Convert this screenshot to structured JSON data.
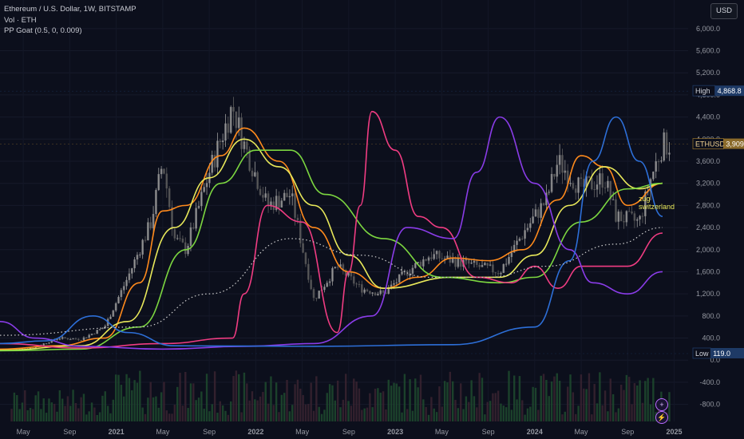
{
  "legend": {
    "symbol_line": "Ethereum / U.S. Dollar, 1W, BITSTAMP",
    "volume_line": "Vol · ETH",
    "indicator_line": "PP Goat (0.5, 0, 0.009)"
  },
  "currency_button": "USD",
  "side_buttons": {
    "plus": "+",
    "bolt": "⚡"
  },
  "annotation": {
    "line1": "zug",
    "line2": "switzerland"
  },
  "badges": {
    "high": {
      "label": "High",
      "value": "4,868.8",
      "price": 4868.8
    },
    "last": {
      "label": "ETHUSD",
      "value": "3,909.9",
      "price": 3909.9
    },
    "low": {
      "label": "Low",
      "value": "119.0",
      "price": 119.0
    }
  },
  "colors": {
    "background": "#0c0f1c",
    "orange": "#ff8a1c",
    "yellow": "#e8e85a",
    "green": "#7cd640",
    "pink": "#f03c82",
    "purple": "#8a3ce8",
    "blue": "#2d6fd8",
    "candle": "#8a8a8a",
    "volume": "#1f4a2e",
    "white_dots": "#cfcfcf"
  },
  "chart_data": {
    "type": "line",
    "title": "Ethereum / U.S. Dollar, 1W, BITSTAMP",
    "x_ticks": [
      "May",
      "Sep",
      "2021",
      "May",
      "Sep",
      "2022",
      "May",
      "Sep",
      "2023",
      "May",
      "Sep",
      "2024",
      "May",
      "Sep",
      "2025"
    ],
    "y_ticks": [
      6000,
      5600,
      5200,
      4800,
      4400,
      4000,
      3600,
      3200,
      2800,
      2400,
      2000,
      1600,
      1200,
      800,
      400,
      0,
      -400,
      -800
    ],
    "y_tick_labels": [
      "6,000.0",
      "5,600.0",
      "5,200.0",
      "4,800.0",
      "4,400.0",
      "4,000.0",
      "3,600.0",
      "3,200.0",
      "2,800.0",
      "2,400.0",
      "2,000.0",
      "1,600.0",
      "1,200.0",
      "800.0",
      "400.0",
      "0.0",
      "-400.0",
      "-800.0"
    ],
    "ylim": [
      -950,
      6200
    ],
    "x_start": "2020-03",
    "x_end": "2024-12",
    "price_candles_approx": [
      [
        "2020-04",
        180
      ],
      [
        "2020-06",
        235
      ],
      [
        "2020-08",
        400
      ],
      [
        "2020-10",
        380
      ],
      [
        "2020-12",
        600
      ],
      [
        "2021-02",
        1500
      ],
      [
        "2021-04",
        2500
      ],
      [
        "2021-05",
        3600
      ],
      [
        "2021-06",
        2200
      ],
      [
        "2021-07",
        2000
      ],
      [
        "2021-09",
        3400
      ],
      [
        "2021-11",
        4600
      ],
      [
        "2021-12",
        3900
      ],
      [
        "2022-02",
        2800
      ],
      [
        "2022-04",
        3000
      ],
      [
        "2022-06",
        1100
      ],
      [
        "2022-08",
        1700
      ],
      [
        "2022-10",
        1300
      ],
      [
        "2022-12",
        1200
      ],
      [
        "2023-02",
        1600
      ],
      [
        "2023-04",
        1900
      ],
      [
        "2023-06",
        1800
      ],
      [
        "2023-08",
        1700
      ],
      [
        "2023-10",
        1600
      ],
      [
        "2023-12",
        2300
      ],
      [
        "2024-02",
        2900
      ],
      [
        "2024-03",
        3600
      ],
      [
        "2024-05",
        3100
      ],
      [
        "2024-07",
        3300
      ],
      [
        "2024-08",
        2600
      ],
      [
        "2024-10",
        2500
      ],
      [
        "2024-11",
        3300
      ],
      [
        "2024-12",
        3900
      ]
    ],
    "series": [
      {
        "color": "#ff8a1c",
        "points": [
          [
            "2020-03",
            200
          ],
          [
            "2020-08",
            260
          ],
          [
            "2020-12",
            400
          ],
          [
            "2021-03",
            1400
          ],
          [
            "2021-05",
            2700
          ],
          [
            "2021-07",
            2800
          ],
          [
            "2021-10",
            3700
          ],
          [
            "2021-12",
            4200
          ],
          [
            "2022-03",
            3600
          ],
          [
            "2022-06",
            2400
          ],
          [
            "2022-09",
            1600
          ],
          [
            "2022-12",
            1300
          ],
          [
            "2023-03",
            1500
          ],
          [
            "2023-06",
            1850
          ],
          [
            "2023-09",
            1800
          ],
          [
            "2023-12",
            2000
          ],
          [
            "2024-03",
            2900
          ],
          [
            "2024-05",
            3700
          ],
          [
            "2024-07",
            3500
          ],
          [
            "2024-09",
            2800
          ],
          [
            "2024-12",
            3200
          ]
        ]
      },
      {
        "color": "#e8e85a",
        "points": [
          [
            "2020-03",
            180
          ],
          [
            "2020-10",
            260
          ],
          [
            "2021-02",
            700
          ],
          [
            "2021-06",
            2400
          ],
          [
            "2021-09",
            3300
          ],
          [
            "2021-12",
            4000
          ],
          [
            "2022-03",
            3500
          ],
          [
            "2022-06",
            2800
          ],
          [
            "2022-09",
            1900
          ],
          [
            "2022-12",
            1300
          ],
          [
            "2023-06",
            1500
          ],
          [
            "2023-10",
            1500
          ],
          [
            "2024-01",
            1900
          ],
          [
            "2024-04",
            2800
          ],
          [
            "2024-07",
            3500
          ],
          [
            "2024-10",
            3100
          ],
          [
            "2024-12",
            3200
          ]
        ]
      },
      {
        "color": "#7cd640",
        "points": [
          [
            "2020-03",
            170
          ],
          [
            "2020-10",
            200
          ],
          [
            "2021-03",
            600
          ],
          [
            "2021-07",
            2000
          ],
          [
            "2021-10",
            3200
          ],
          [
            "2022-01",
            3800
          ],
          [
            "2022-04",
            3800
          ],
          [
            "2022-07",
            3000
          ],
          [
            "2022-12",
            2200
          ],
          [
            "2023-05",
            1500
          ],
          [
            "2023-10",
            1400
          ],
          [
            "2024-01",
            1500
          ],
          [
            "2024-05",
            2500
          ],
          [
            "2024-09",
            3100
          ],
          [
            "2024-12",
            3200
          ]
        ]
      },
      {
        "color": "#f03c82",
        "points": [
          [
            "2020-03",
            300
          ],
          [
            "2020-10",
            220
          ],
          [
            "2021-05",
            300
          ],
          [
            "2021-11",
            400
          ],
          [
            "2021-12",
            1200
          ],
          [
            "2022-02",
            2800
          ],
          [
            "2022-05",
            2500
          ],
          [
            "2022-08",
            500
          ],
          [
            "2022-09",
            1600
          ],
          [
            "2022-10",
            2800
          ],
          [
            "2022-11",
            4500
          ],
          [
            "2023-01",
            3800
          ],
          [
            "2023-03",
            2600
          ],
          [
            "2023-05",
            2400
          ],
          [
            "2023-08",
            1500
          ],
          [
            "2023-11",
            1400
          ],
          [
            "2024-01",
            1700
          ],
          [
            "2024-03",
            1300
          ],
          [
            "2024-05",
            1700
          ],
          [
            "2024-09",
            1700
          ],
          [
            "2024-12",
            2300
          ]
        ]
      },
      {
        "color": "#8a3ce8",
        "points": [
          [
            "2020-03",
            700
          ],
          [
            "2020-06",
            400
          ],
          [
            "2020-10",
            250
          ],
          [
            "2021-05",
            200
          ],
          [
            "2021-12",
            250
          ],
          [
            "2022-06",
            300
          ],
          [
            "2022-11",
            800
          ],
          [
            "2023-02",
            2400
          ],
          [
            "2023-06",
            2200
          ],
          [
            "2023-08",
            3400
          ],
          [
            "2023-10",
            4400
          ],
          [
            "2024-01",
            3200
          ],
          [
            "2024-04",
            2000
          ],
          [
            "2024-06",
            1400
          ],
          [
            "2024-09",
            1200
          ],
          [
            "2024-12",
            1600
          ]
        ]
      },
      {
        "color": "#2d6fd8",
        "points": [
          [
            "2020-03",
            300
          ],
          [
            "2020-07",
            350
          ],
          [
            "2020-11",
            800
          ],
          [
            "2021-02",
            500
          ],
          [
            "2021-06",
            260
          ],
          [
            "2022-06",
            250
          ],
          [
            "2023-06",
            280
          ],
          [
            "2024-01",
            600
          ],
          [
            "2024-04",
            1800
          ],
          [
            "2024-06",
            3600
          ],
          [
            "2024-08",
            4400
          ],
          [
            "2024-10",
            3600
          ],
          [
            "2024-12",
            2600
          ]
        ]
      },
      {
        "color": "#cfcfcf",
        "dotted": true,
        "points": [
          [
            "2020-03",
            450
          ],
          [
            "2021-03",
            600
          ],
          [
            "2021-09",
            1200
          ],
          [
            "2022-04",
            2200
          ],
          [
            "2022-10",
            1900
          ],
          [
            "2023-04",
            1500
          ],
          [
            "2023-09",
            1500
          ],
          [
            "2024-02",
            1700
          ],
          [
            "2024-08",
            2100
          ],
          [
            "2024-12",
            2400
          ]
        ]
      }
    ]
  }
}
